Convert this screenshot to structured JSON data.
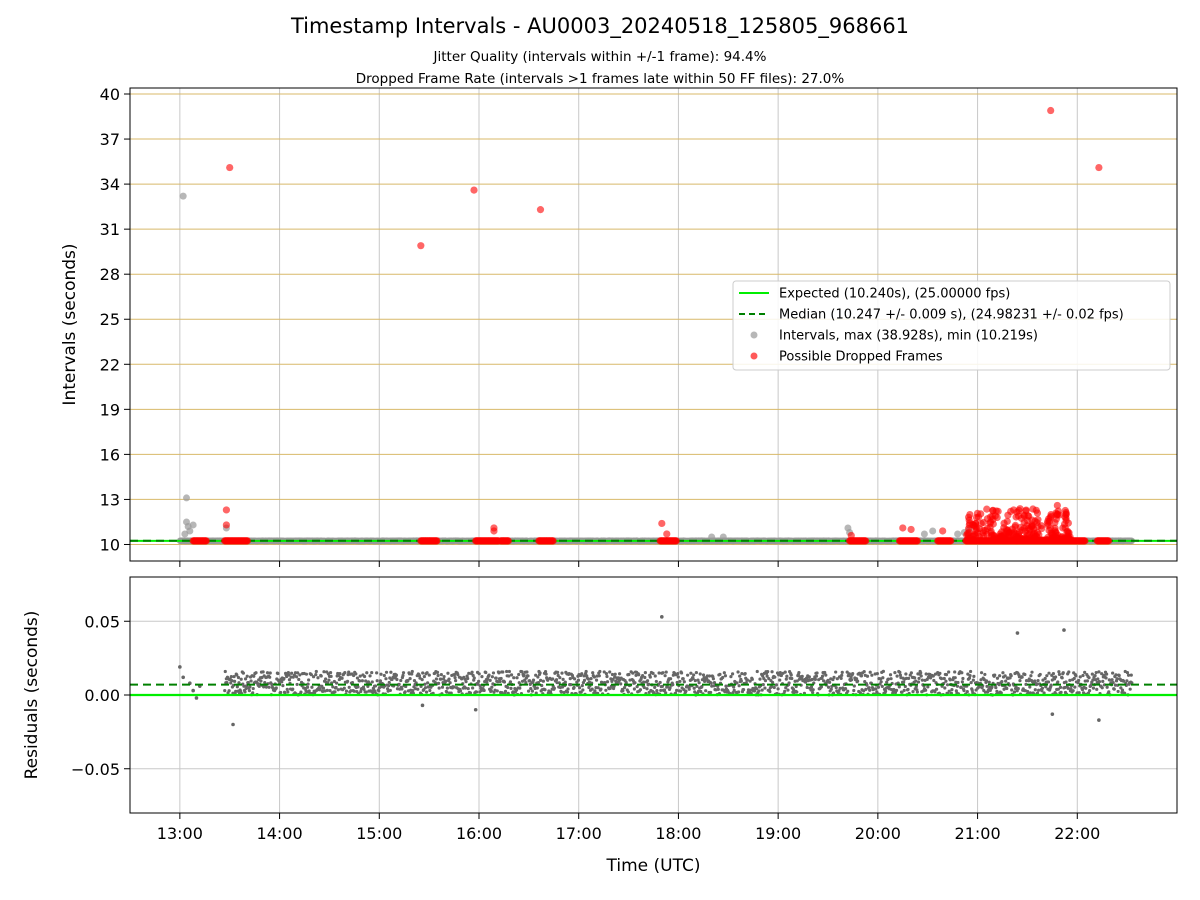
{
  "title": "Timestamp Intervals - AU0003_20240518_125805_968661",
  "subtitle_1": "Jitter Quality (intervals within +/-1 frame): 94.4%",
  "subtitle_2": "Dropped Frame Rate (intervals >1 frames late within 50 FF files): 27.0%",
  "colors": {
    "expected": "#00ee00",
    "median": "#008000",
    "intervals": "#999999",
    "dropped": "#ff0000",
    "residuals": "#666666",
    "hgrid_top": "#d8b96a",
    "grid": "#c8c8c8"
  },
  "chart_data": [
    {
      "type": "scatter",
      "ylabel": "Intervals (seconds)",
      "ylim": [
        8.9,
        40.4
      ],
      "yticks": [
        10,
        13,
        16,
        19,
        22,
        25,
        28,
        31,
        34,
        37,
        40
      ],
      "xlim": [
        12.5,
        23.0
      ],
      "grid": true,
      "legend_position": "center-right",
      "legend": [
        {
          "label": "Expected (10.240s), (25.00000 fps)",
          "kind": "line-solid"
        },
        {
          "label": "Median (10.247 +/- 0.009 s), (24.98231 +/- 0.02 fps)",
          "kind": "line-dashed"
        },
        {
          "label": "Intervals, max (38.928s), min (10.219s)",
          "kind": "dot-gray"
        },
        {
          "label": "Possible Dropped Frames",
          "kind": "dot-red"
        }
      ],
      "expected_line": 10.24,
      "median_line": 10.247,
      "intervals_band": {
        "x_start": 13.0,
        "x_end": 22.55,
        "y_low": 10.219,
        "y_high": 10.263
      },
      "intervals_outliers": [
        {
          "x": "13:02",
          "y": 33.2
        },
        {
          "x": "13:04",
          "y": 13.1
        },
        {
          "x": "13:04",
          "y": 11.5
        },
        {
          "x": "13:05",
          "y": 11.2
        },
        {
          "x": "13:06",
          "y": 10.9
        },
        {
          "x": "13:08",
          "y": 11.3
        },
        {
          "x": "13:03",
          "y": 10.7
        },
        {
          "x": "13:28",
          "y": 11.1
        },
        {
          "x": "18:20",
          "y": 10.5
        },
        {
          "x": "18:27",
          "y": 10.5
        },
        {
          "x": "19:42",
          "y": 11.1
        },
        {
          "x": "19:43",
          "y": 10.8
        },
        {
          "x": "20:28",
          "y": 10.7
        },
        {
          "x": "20:33",
          "y": 10.9
        },
        {
          "x": "20:48",
          "y": 10.7
        },
        {
          "x": "20:52",
          "y": 10.8
        },
        {
          "x": "20:55",
          "y": 11.0
        }
      ],
      "dropped_frames": [
        {
          "x": "13:30",
          "y": 35.1
        },
        {
          "x": "15:25",
          "y": 29.9
        },
        {
          "x": "15:57",
          "y": 33.6
        },
        {
          "x": "16:37",
          "y": 32.3
        },
        {
          "x": "21:44",
          "y": 38.9
        },
        {
          "x": "22:13",
          "y": 35.1
        },
        {
          "x": "13:28",
          "y": 12.3
        },
        {
          "x": "13:28",
          "y": 11.3
        },
        {
          "x": "16:09",
          "y": 11.1
        },
        {
          "x": "16:09",
          "y": 10.9
        },
        {
          "x": "17:50",
          "y": 11.4
        },
        {
          "x": "17:53",
          "y": 10.7
        },
        {
          "x": "19:44",
          "y": 10.6
        },
        {
          "x": "20:15",
          "y": 11.1
        },
        {
          "x": "20:20",
          "y": 11.0
        },
        {
          "x": "20:39",
          "y": 10.9
        },
        {
          "x": "21:48",
          "y": 12.6
        }
      ],
      "dropped_runs": [
        {
          "x_start": "13:08",
          "x_end": "13:16",
          "y": 10.24
        },
        {
          "x_start": "13:27",
          "x_end": "13:41",
          "y": 10.24
        },
        {
          "x_start": "15:25",
          "x_end": "15:35",
          "y": 10.24
        },
        {
          "x_start": "15:58",
          "x_end": "16:12",
          "y": 10.24
        },
        {
          "x_start": "16:13",
          "x_end": "16:18",
          "y": 10.24
        },
        {
          "x_start": "16:36",
          "x_end": "16:45",
          "y": 10.24
        },
        {
          "x_start": "17:49",
          "x_end": "17:59",
          "y": 10.24
        },
        {
          "x_start": "19:43",
          "x_end": "19:53",
          "y": 10.24
        },
        {
          "x_start": "20:13",
          "x_end": "20:24",
          "y": 10.24
        },
        {
          "x_start": "20:36",
          "x_end": "20:44",
          "y": 10.24
        },
        {
          "x_start": "20:53",
          "x_end": "22:05",
          "y": 10.24
        },
        {
          "x_start": "22:12",
          "x_end": "22:19",
          "y": 10.24
        }
      ],
      "dropped_cluster": {
        "x_start": "20:53",
        "x_end": "21:56",
        "y_low": 10.3,
        "y_high": 12.4
      }
    },
    {
      "type": "scatter",
      "xlabel": "Time (UTC)",
      "ylabel": "Residuals (seconds)",
      "ylim": [
        -0.08,
        0.08
      ],
      "yticks": [
        0.05,
        0.0,
        -0.05
      ],
      "ytick_labels": [
        "0.05",
        "0.00",
        "−0.05"
      ],
      "xlim": [
        12.5,
        23.0
      ],
      "xticks": [
        "13:00",
        "14:00",
        "15:00",
        "16:00",
        "17:00",
        "18:00",
        "19:00",
        "20:00",
        "21:00",
        "22:00"
      ],
      "grid": true,
      "expected_line": 0.0,
      "median_line": 0.007,
      "residuals_band": {
        "x_start": "13:27",
        "x_end": "22:33",
        "y_low": 0.0,
        "y_high": 0.016
      },
      "residuals_outliers": [
        {
          "x": "13:00",
          "y": 0.019
        },
        {
          "x": "13:02",
          "y": 0.012
        },
        {
          "x": "13:06",
          "y": 0.008
        },
        {
          "x": "13:08",
          "y": 0.003
        },
        {
          "x": "13:10",
          "y": -0.002
        },
        {
          "x": "13:12",
          "y": 0.006
        },
        {
          "x": "13:32",
          "y": -0.02
        },
        {
          "x": "15:26",
          "y": -0.007
        },
        {
          "x": "15:58",
          "y": -0.01
        },
        {
          "x": "17:50",
          "y": 0.053
        },
        {
          "x": "21:24",
          "y": 0.042
        },
        {
          "x": "21:45",
          "y": -0.013
        },
        {
          "x": "21:52",
          "y": 0.044
        },
        {
          "x": "22:13",
          "y": -0.017
        }
      ]
    }
  ]
}
